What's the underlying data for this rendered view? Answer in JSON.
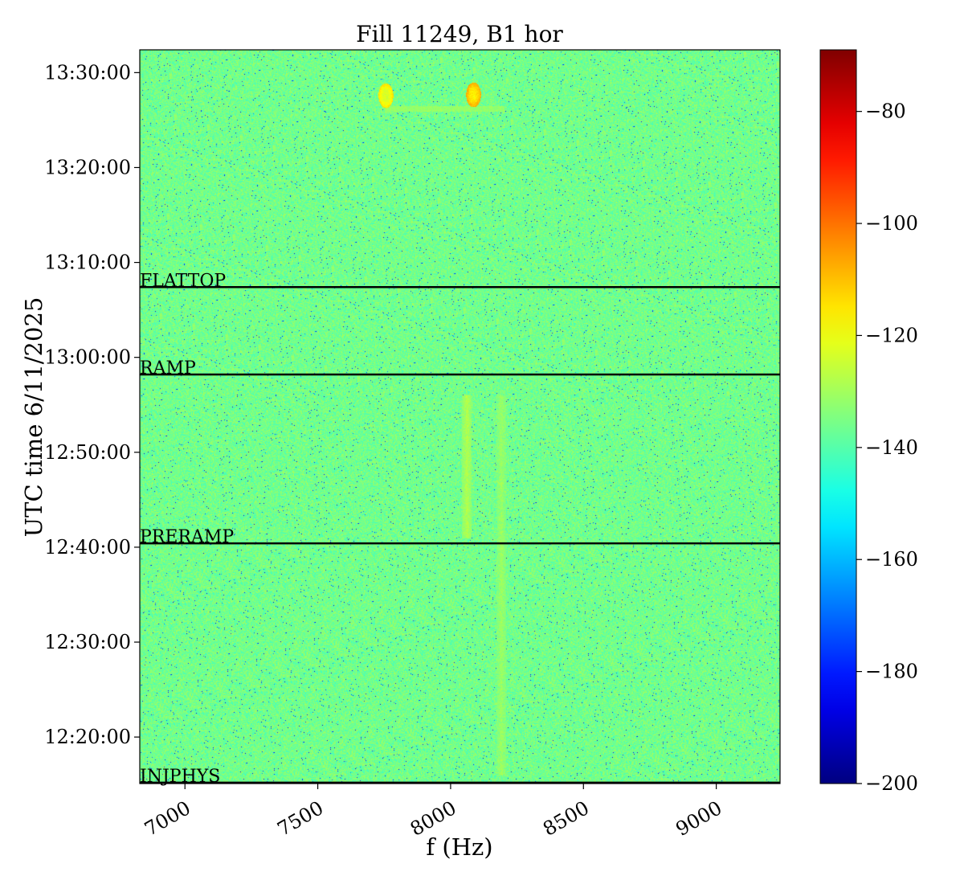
{
  "chart_data": {
    "type": "heatmap",
    "title": "Fill 11249, B1 hor",
    "xlabel": "f (Hz)",
    "ylabel": "UTC time 6/11/2025",
    "xlim": [
      6830,
      9240
    ],
    "ylim_minutes_since_midnight": [
      735.1,
      812.4
    ],
    "x_ticks": [
      {
        "value": 7000,
        "label": "7000"
      },
      {
        "value": 7500,
        "label": "7500"
      },
      {
        "value": 8000,
        "label": "8000"
      },
      {
        "value": 8500,
        "label": "8500"
      },
      {
        "value": 9000,
        "label": "9000"
      }
    ],
    "y_ticks": [
      {
        "value": 740,
        "label": "12:20:00"
      },
      {
        "value": 750,
        "label": "12:30:00"
      },
      {
        "value": 760,
        "label": "12:40:00"
      },
      {
        "value": 770,
        "label": "12:50:00"
      },
      {
        "value": 780,
        "label": "13:00:00"
      },
      {
        "value": 790,
        "label": "13:10:00"
      },
      {
        "value": 800,
        "label": "13:20:00"
      },
      {
        "value": 810,
        "label": "13:30:00"
      }
    ],
    "colorbar": {
      "colormap": "jet",
      "min": -200,
      "max": -69,
      "ticks": [
        {
          "value": -80,
          "label": "−80"
        },
        {
          "value": -100,
          "label": "−100"
        },
        {
          "value": -120,
          "label": "−120"
        },
        {
          "value": -140,
          "label": "−140"
        },
        {
          "value": -160,
          "label": "−160"
        },
        {
          "value": -180,
          "label": "−180"
        },
        {
          "value": -200,
          "label": "−200"
        }
      ]
    },
    "background_level": -136,
    "markers": [
      {
        "label": "INJPHYS",
        "y": 735.2
      },
      {
        "label": "PRERAMP",
        "y": 760.4
      },
      {
        "label": "RAMP",
        "y": 778.2
      },
      {
        "label": "FLATTOP",
        "y": 787.4
      }
    ],
    "features": [
      {
        "type": "line",
        "f": 8060,
        "y_from": 761,
        "y_to": 776,
        "level": -128
      },
      {
        "type": "line",
        "f": 8190,
        "y_from": 736,
        "y_to": 776,
        "level": -131
      },
      {
        "type": "blob",
        "f": 7755,
        "y": 807.6,
        "level": -124
      },
      {
        "type": "blob",
        "f": 8085,
        "y": 807.7,
        "level": -117
      },
      {
        "type": "line_h",
        "f_from": 7750,
        "f_to": 8200,
        "y": 806.2,
        "level": -132
      }
    ],
    "grid": false
  }
}
